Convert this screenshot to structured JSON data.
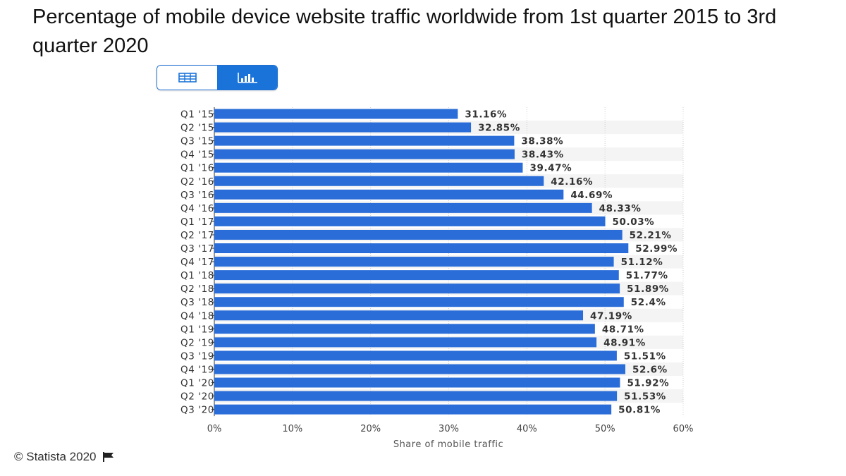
{
  "title": "Percentage of mobile device website traffic worldwide from 1st quarter 2015 to 3rd quarter 2020",
  "toggle": {
    "table_icon": "table-icon",
    "chart_icon": "bar-chart-icon",
    "active": "chart"
  },
  "footer": {
    "copyright": "© Statista 2020",
    "flag_icon": "flag-icon"
  },
  "colors": {
    "bar": "#2b6dd8",
    "accent": "#1a73d9"
  },
  "chart_data": {
    "type": "bar",
    "orientation": "horizontal",
    "title": "Percentage of mobile device website traffic worldwide from 1st quarter 2015 to 3rd quarter 2020",
    "xlabel": "Share of mobile traffic",
    "ylabel": "",
    "xlim": [
      0,
      60
    ],
    "xticks": [
      "0%",
      "10%",
      "20%",
      "30%",
      "40%",
      "50%",
      "60%"
    ],
    "grid": true,
    "categories": [
      "Q1 '15",
      "Q2 '15",
      "Q3 '15",
      "Q4 '15",
      "Q1 '16",
      "Q2 '16",
      "Q3 '16",
      "Q4 '16",
      "Q1 '17",
      "Q2 '17",
      "Q3 '17",
      "Q4 '17",
      "Q1 '18",
      "Q2 '18",
      "Q3 '18",
      "Q4 '18",
      "Q1 '19",
      "Q2 '19",
      "Q3 '19",
      "Q4 '19",
      "Q1 '20",
      "Q2 '20",
      "Q3 '20"
    ],
    "values": [
      31.16,
      32.85,
      38.38,
      38.43,
      39.47,
      42.16,
      44.69,
      48.33,
      50.03,
      52.21,
      52.99,
      51.12,
      51.77,
      51.89,
      52.4,
      47.19,
      48.71,
      48.91,
      51.51,
      52.6,
      51.92,
      51.53,
      50.81
    ],
    "labels": [
      "31.16%",
      "32.85%",
      "38.38%",
      "38.43%",
      "39.47%",
      "42.16%",
      "44.69%",
      "48.33%",
      "50.03%",
      "52.21%",
      "52.99%",
      "51.12%",
      "51.77%",
      "51.89%",
      "52.4%",
      "47.19%",
      "48.71%",
      "48.91%",
      "51.51%",
      "52.6%",
      "51.92%",
      "51.53%",
      "50.81%"
    ]
  }
}
